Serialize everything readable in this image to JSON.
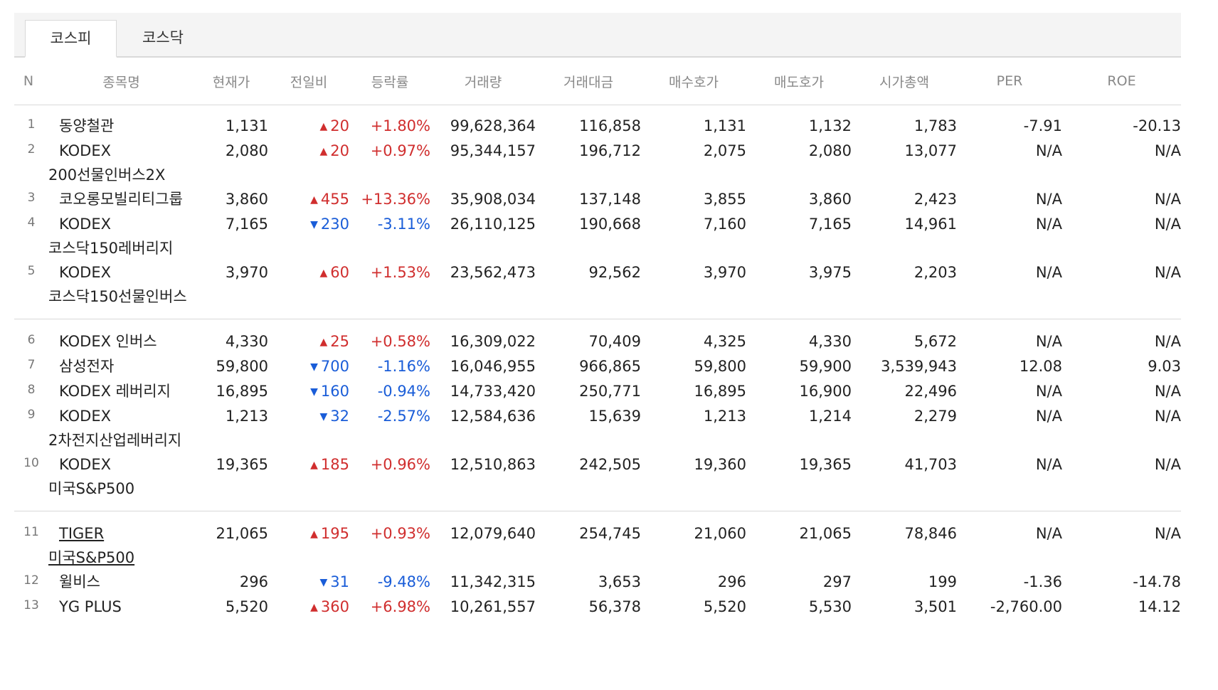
{
  "tabs": [
    {
      "label": "코스피",
      "active": true
    },
    {
      "label": "코스닥",
      "active": false
    }
  ],
  "columns": [
    "N",
    "종목명",
    "현재가",
    "전일비",
    "등락률",
    "거래량",
    "거래대금",
    "매수호가",
    "매도호가",
    "시가총액",
    "PER",
    "ROE"
  ],
  "colors": {
    "up": "#d02e2e",
    "down": "#1a5dd8"
  },
  "rows": [
    {
      "n": "1",
      "name": "동양철관",
      "price": "1,131",
      "dir": "up",
      "diff": "20",
      "rate": "+1.80%",
      "volume": "99,628,364",
      "amount": "116,858",
      "bid": "1,131",
      "ask": "1,132",
      "cap": "1,783",
      "per": "-7.91",
      "roe": "-20.13"
    },
    {
      "n": "2",
      "name": "KODEX 200선물인버스2X",
      "price": "2,080",
      "dir": "up",
      "diff": "20",
      "rate": "+0.97%",
      "volume": "95,344,157",
      "amount": "196,712",
      "bid": "2,075",
      "ask": "2,080",
      "cap": "13,077",
      "per": "N/A",
      "roe": "N/A"
    },
    {
      "n": "3",
      "name": "코오롱모빌리티그룹",
      "price": "3,860",
      "dir": "up",
      "diff": "455",
      "rate": "+13.36%",
      "volume": "35,908,034",
      "amount": "137,148",
      "bid": "3,855",
      "ask": "3,860",
      "cap": "2,423",
      "per": "N/A",
      "roe": "N/A"
    },
    {
      "n": "4",
      "name": "KODEX 코스닥150레버리지",
      "price": "7,165",
      "dir": "down",
      "diff": "230",
      "rate": "-3.11%",
      "volume": "26,110,125",
      "amount": "190,668",
      "bid": "7,160",
      "ask": "7,165",
      "cap": "14,961",
      "per": "N/A",
      "roe": "N/A"
    },
    {
      "n": "5",
      "name": "KODEX 코스닥150선물인버스",
      "price": "3,970",
      "dir": "up",
      "diff": "60",
      "rate": "+1.53%",
      "volume": "23,562,473",
      "amount": "92,562",
      "bid": "3,970",
      "ask": "3,975",
      "cap": "2,203",
      "per": "N/A",
      "roe": "N/A"
    },
    {
      "n": "6",
      "name": "KODEX 인버스",
      "price": "4,330",
      "dir": "up",
      "diff": "25",
      "rate": "+0.58%",
      "volume": "16,309,022",
      "amount": "70,409",
      "bid": "4,325",
      "ask": "4,330",
      "cap": "5,672",
      "per": "N/A",
      "roe": "N/A"
    },
    {
      "n": "7",
      "name": "삼성전자",
      "price": "59,800",
      "dir": "down",
      "diff": "700",
      "rate": "-1.16%",
      "volume": "16,046,955",
      "amount": "966,865",
      "bid": "59,800",
      "ask": "59,900",
      "cap": "3,539,943",
      "per": "12.08",
      "roe": "9.03"
    },
    {
      "n": "8",
      "name": "KODEX 레버리지",
      "price": "16,895",
      "dir": "down",
      "diff": "160",
      "rate": "-0.94%",
      "volume": "14,733,420",
      "amount": "250,771",
      "bid": "16,895",
      "ask": "16,900",
      "cap": "22,496",
      "per": "N/A",
      "roe": "N/A"
    },
    {
      "n": "9",
      "name": "KODEX 2차전지산업레버리지",
      "price": "1,213",
      "dir": "down",
      "diff": "32",
      "rate": "-2.57%",
      "volume": "12,584,636",
      "amount": "15,639",
      "bid": "1,213",
      "ask": "1,214",
      "cap": "2,279",
      "per": "N/A",
      "roe": "N/A"
    },
    {
      "n": "10",
      "name": "KODEX 미국S&P500",
      "price": "19,365",
      "dir": "up",
      "diff": "185",
      "rate": "+0.96%",
      "volume": "12,510,863",
      "amount": "242,505",
      "bid": "19,360",
      "ask": "19,365",
      "cap": "41,703",
      "per": "N/A",
      "roe": "N/A"
    },
    {
      "n": "11",
      "name": "TIGER 미국S&P500",
      "price": "21,065",
      "dir": "up",
      "diff": "195",
      "rate": "+0.93%",
      "volume": "12,079,640",
      "amount": "254,745",
      "bid": "21,060",
      "ask": "21,065",
      "cap": "78,846",
      "per": "N/A",
      "roe": "N/A",
      "link": true
    },
    {
      "n": "12",
      "name": "윌비스",
      "price": "296",
      "dir": "down",
      "diff": "31",
      "rate": "-9.48%",
      "volume": "11,342,315",
      "amount": "3,653",
      "bid": "296",
      "ask": "297",
      "cap": "199",
      "per": "-1.36",
      "roe": "-14.78"
    },
    {
      "n": "13",
      "name": "YG PLUS",
      "price": "5,520",
      "dir": "up",
      "diff": "360",
      "rate": "+6.98%",
      "volume": "10,261,557",
      "amount": "56,378",
      "bid": "5,520",
      "ask": "5,530",
      "cap": "3,501",
      "per": "-2,760.00",
      "roe": "14.12"
    }
  ]
}
